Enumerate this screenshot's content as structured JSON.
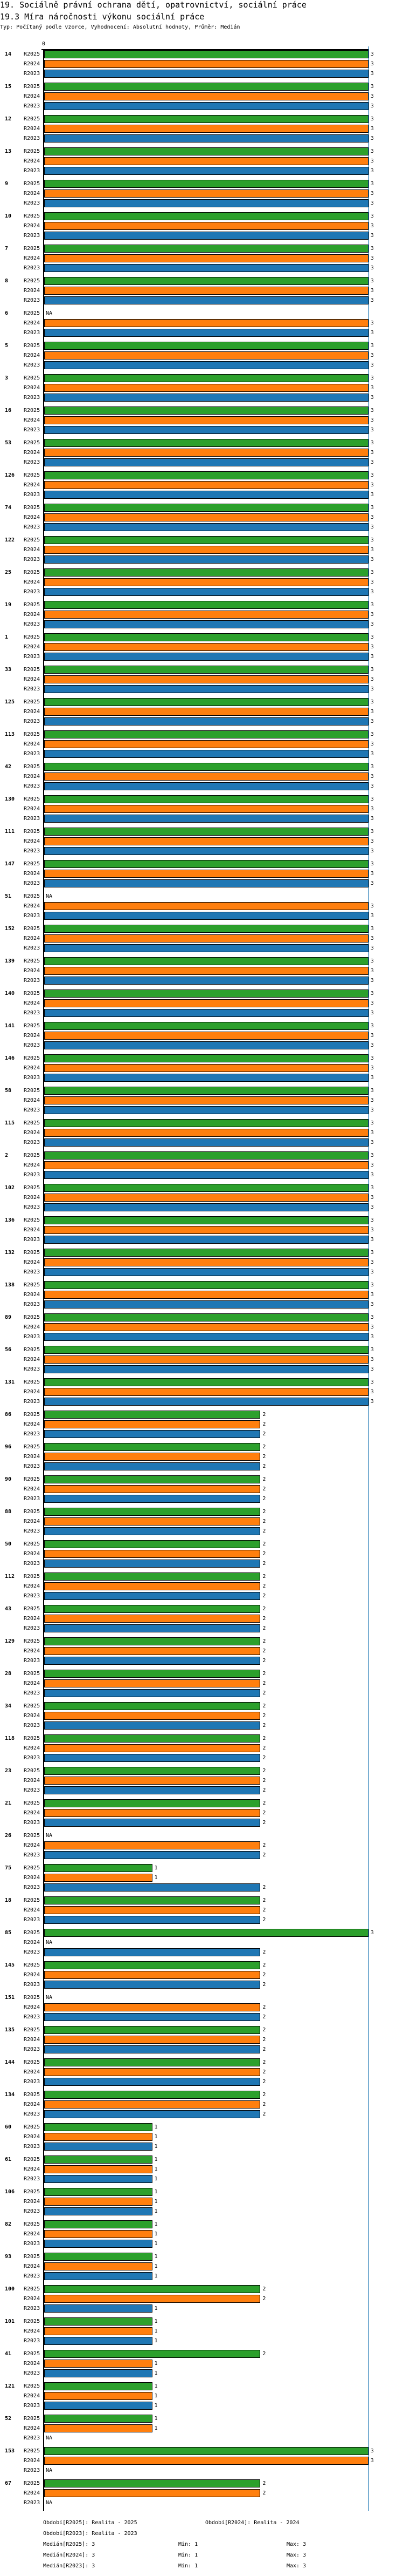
{
  "header": {
    "title": "19. Sociálně právní ochrana dětí, opatrovnictví, sociální práce",
    "subtitle": "19.3 Míra náročnosti výkonu sociální práce",
    "meta": "Typ: Počítaný podle vzorce, Vyhodnocení: Absolutní hodnoty, Průměr: Medián"
  },
  "colors": {
    "R2025": "#2ca02c",
    "R2024": "#ff7f0e",
    "R2023": "#1f77b4",
    "max_line": "#1f77b4"
  },
  "chart_data": {
    "type": "bar",
    "orientation": "horizontal",
    "x_tick_label": "0",
    "xlim": [
      0,
      3
    ],
    "max_line_value": 3,
    "na_label": "NA",
    "series_names": [
      "R2025",
      "R2024",
      "R2023"
    ],
    "groups": [
      {
        "label": "14",
        "values": [
          3,
          3,
          3
        ]
      },
      {
        "label": "15",
        "values": [
          3,
          3,
          3
        ]
      },
      {
        "label": "12",
        "values": [
          3,
          3,
          3
        ]
      },
      {
        "label": "13",
        "values": [
          3,
          3,
          3
        ]
      },
      {
        "label": "9",
        "values": [
          3,
          3,
          3
        ]
      },
      {
        "label": "10",
        "values": [
          3,
          3,
          3
        ]
      },
      {
        "label": "7",
        "values": [
          3,
          3,
          3
        ]
      },
      {
        "label": "8",
        "values": [
          3,
          3,
          3
        ]
      },
      {
        "label": "6",
        "values": [
          null,
          3,
          3
        ]
      },
      {
        "label": "5",
        "values": [
          3,
          3,
          3
        ]
      },
      {
        "label": "3",
        "values": [
          3,
          3,
          3
        ]
      },
      {
        "label": "16",
        "values": [
          3,
          3,
          3
        ]
      },
      {
        "label": "53",
        "values": [
          3,
          3,
          3
        ]
      },
      {
        "label": "126",
        "values": [
          3,
          3,
          3
        ]
      },
      {
        "label": "74",
        "values": [
          3,
          3,
          3
        ]
      },
      {
        "label": "122",
        "values": [
          3,
          3,
          3
        ]
      },
      {
        "label": "25",
        "values": [
          3,
          3,
          3
        ]
      },
      {
        "label": "19",
        "values": [
          3,
          3,
          3
        ]
      },
      {
        "label": "1",
        "values": [
          3,
          3,
          3
        ]
      },
      {
        "label": "33",
        "values": [
          3,
          3,
          3
        ]
      },
      {
        "label": "125",
        "values": [
          3,
          3,
          3
        ]
      },
      {
        "label": "113",
        "values": [
          3,
          3,
          3
        ]
      },
      {
        "label": "42",
        "values": [
          3,
          3,
          3
        ]
      },
      {
        "label": "130",
        "values": [
          3,
          3,
          3
        ]
      },
      {
        "label": "111",
        "values": [
          3,
          3,
          3
        ]
      },
      {
        "label": "147",
        "values": [
          3,
          3,
          3
        ]
      },
      {
        "label": "51",
        "values": [
          null,
          3,
          3
        ]
      },
      {
        "label": "152",
        "values": [
          3,
          3,
          3
        ]
      },
      {
        "label": "139",
        "values": [
          3,
          3,
          3
        ]
      },
      {
        "label": "140",
        "values": [
          3,
          3,
          3
        ]
      },
      {
        "label": "141",
        "values": [
          3,
          3,
          3
        ]
      },
      {
        "label": "146",
        "values": [
          3,
          3,
          3
        ]
      },
      {
        "label": "58",
        "values": [
          3,
          3,
          3
        ]
      },
      {
        "label": "115",
        "values": [
          3,
          3,
          3
        ]
      },
      {
        "label": "2",
        "values": [
          3,
          3,
          3
        ]
      },
      {
        "label": "102",
        "values": [
          3,
          3,
          3
        ]
      },
      {
        "label": "136",
        "values": [
          3,
          3,
          3
        ]
      },
      {
        "label": "132",
        "values": [
          3,
          3,
          3
        ]
      },
      {
        "label": "138",
        "values": [
          3,
          3,
          3
        ]
      },
      {
        "label": "89",
        "values": [
          3,
          3,
          3
        ]
      },
      {
        "label": "56",
        "values": [
          3,
          3,
          3
        ]
      },
      {
        "label": "131",
        "values": [
          3,
          3,
          3
        ]
      },
      {
        "label": "86",
        "values": [
          2,
          2,
          2
        ]
      },
      {
        "label": "96",
        "values": [
          2,
          2,
          2
        ]
      },
      {
        "label": "90",
        "values": [
          2,
          2,
          2
        ]
      },
      {
        "label": "88",
        "values": [
          2,
          2,
          2
        ]
      },
      {
        "label": "50",
        "values": [
          2,
          2,
          2
        ]
      },
      {
        "label": "112",
        "values": [
          2,
          2,
          2
        ]
      },
      {
        "label": "43",
        "values": [
          2,
          2,
          2
        ]
      },
      {
        "label": "129",
        "values": [
          2,
          2,
          2
        ]
      },
      {
        "label": "28",
        "values": [
          2,
          2,
          2
        ]
      },
      {
        "label": "34",
        "values": [
          2,
          2,
          2
        ]
      },
      {
        "label": "118",
        "values": [
          2,
          2,
          2
        ]
      },
      {
        "label": "23",
        "values": [
          2,
          2,
          2
        ]
      },
      {
        "label": "21",
        "values": [
          2,
          2,
          2
        ]
      },
      {
        "label": "26",
        "values": [
          null,
          2,
          2
        ]
      },
      {
        "label": "75",
        "values": [
          1,
          1,
          2
        ]
      },
      {
        "label": "18",
        "values": [
          2,
          2,
          2
        ]
      },
      {
        "label": "85",
        "values": [
          3,
          null,
          2
        ]
      },
      {
        "label": "145",
        "values": [
          2,
          2,
          2
        ]
      },
      {
        "label": "151",
        "values": [
          null,
          2,
          2
        ]
      },
      {
        "label": "135",
        "values": [
          2,
          2,
          2
        ]
      },
      {
        "label": "144",
        "values": [
          2,
          2,
          2
        ]
      },
      {
        "label": "134",
        "values": [
          2,
          2,
          2
        ]
      },
      {
        "label": "60",
        "values": [
          1,
          1,
          1
        ]
      },
      {
        "label": "61",
        "values": [
          1,
          1,
          1
        ]
      },
      {
        "label": "106",
        "values": [
          1,
          1,
          1
        ]
      },
      {
        "label": "82",
        "values": [
          1,
          1,
          1
        ]
      },
      {
        "label": "93",
        "values": [
          1,
          1,
          1
        ]
      },
      {
        "label": "100",
        "values": [
          2,
          2,
          1
        ]
      },
      {
        "label": "101",
        "values": [
          1,
          1,
          1
        ]
      },
      {
        "label": "41",
        "values": [
          2,
          1,
          1
        ]
      },
      {
        "label": "121",
        "values": [
          1,
          1,
          1
        ]
      },
      {
        "label": "52",
        "values": [
          1,
          1,
          null
        ]
      },
      {
        "label": "153",
        "values": [
          3,
          3,
          null
        ]
      },
      {
        "label": "67",
        "values": [
          2,
          2,
          null
        ]
      }
    ]
  },
  "footer": {
    "period_r2025": "Období[R2025]: Realita - 2025",
    "period_r2024": "Období[R2024]: Realita - 2024",
    "period_r2023": "Období[R2023]: Realita - 2023",
    "stats": [
      {
        "median": "Medián[R2025]: 3",
        "min": "Min: 1",
        "max": "Max: 3"
      },
      {
        "median": "Medián[R2024]: 3",
        "min": "Min: 1",
        "max": "Max: 3"
      },
      {
        "median": "Medián[R2023]: 3",
        "min": "Min: 1",
        "max": "Max: 3"
      }
    ]
  }
}
